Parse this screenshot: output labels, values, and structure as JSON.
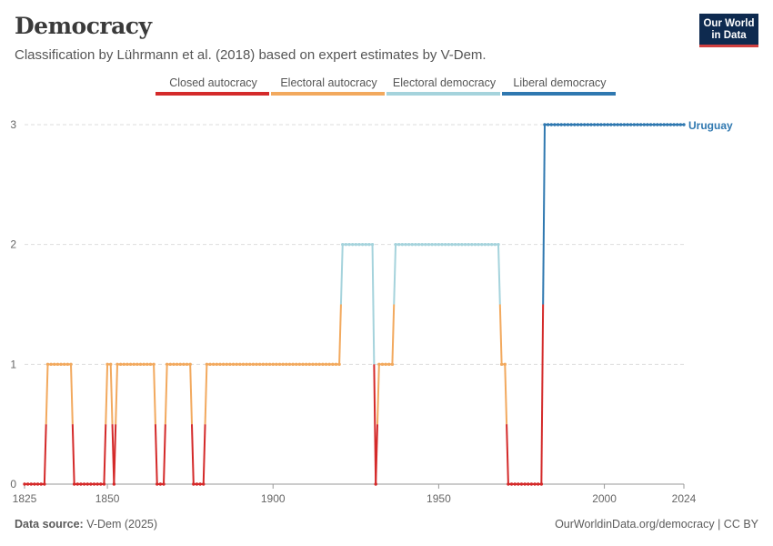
{
  "header": {
    "title": "Democracy",
    "subtitle": "Classification by Lührmann et al. (2018) based on expert estimates by V-Dem.",
    "logo_line1": "Our World",
    "logo_line2": "in Data"
  },
  "footer": {
    "source_label": "Data source:",
    "source_value": "V-Dem (2025)",
    "url": "OurWorldinData.org/democracy | CC BY"
  },
  "chart_data": {
    "type": "line",
    "title": "Democracy",
    "xlabel": "",
    "ylabel": "",
    "xlim": [
      1825,
      2024
    ],
    "ylim": [
      0,
      3
    ],
    "x_ticks": [
      1825,
      1850,
      1900,
      1950,
      2000,
      2024
    ],
    "y_ticks": [
      0,
      1,
      2,
      3
    ],
    "grid": "horizontal dashed",
    "legend": {
      "placement": "top",
      "entries": [
        {
          "label": "Closed autocracy",
          "value": 0,
          "color": "#d42a2a"
        },
        {
          "label": "Electoral autocracy",
          "value": 1,
          "color": "#f2a95e"
        },
        {
          "label": "Electoral democracy",
          "value": 2,
          "color": "#a5d3dc"
        },
        {
          "label": "Liberal democracy",
          "value": 3,
          "color": "#2f78b0"
        }
      ]
    },
    "series": [
      {
        "name": "Uruguay",
        "label_color": "#2f78b0",
        "periods": [
          {
            "start": 1825,
            "end": 1831,
            "value": 0
          },
          {
            "start": 1832,
            "end": 1839,
            "value": 1
          },
          {
            "start": 1840,
            "end": 1849,
            "value": 0
          },
          {
            "start": 1850,
            "end": 1851,
            "value": 1
          },
          {
            "start": 1852,
            "end": 1852,
            "value": 0
          },
          {
            "start": 1853,
            "end": 1864,
            "value": 1
          },
          {
            "start": 1865,
            "end": 1867,
            "value": 0
          },
          {
            "start": 1868,
            "end": 1875,
            "value": 1
          },
          {
            "start": 1876,
            "end": 1879,
            "value": 0
          },
          {
            "start": 1880,
            "end": 1920,
            "value": 1
          },
          {
            "start": 1921,
            "end": 1930,
            "value": 2
          },
          {
            "start": 1931,
            "end": 1931,
            "value": 0
          },
          {
            "start": 1932,
            "end": 1936,
            "value": 1
          },
          {
            "start": 1937,
            "end": 1968,
            "value": 2
          },
          {
            "start": 1969,
            "end": 1970,
            "value": 1
          },
          {
            "start": 1971,
            "end": 1981,
            "value": 0
          },
          {
            "start": 1982,
            "end": 2024,
            "value": 3
          }
        ]
      }
    ]
  }
}
